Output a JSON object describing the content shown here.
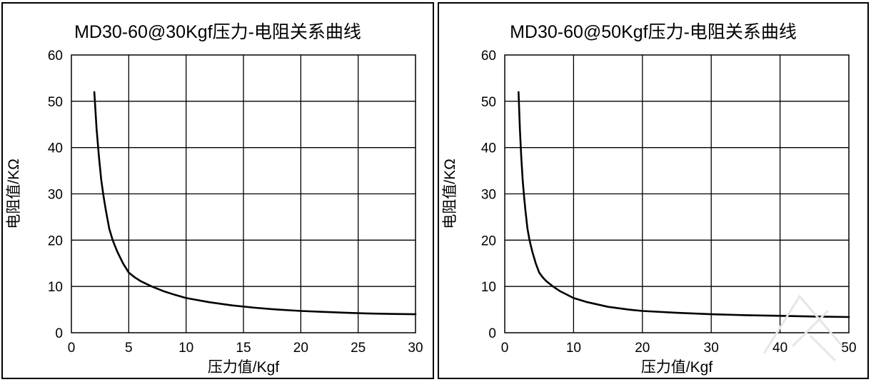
{
  "chart_data": [
    {
      "type": "line",
      "title": "MD30-60@30Kgf压力-电阻关系曲线",
      "xlabel": "压力值/Kgf",
      "ylabel": "电阻值/KΩ",
      "xlim": [
        0,
        30
      ],
      "ylim": [
        0,
        60
      ],
      "xticks": [
        0,
        5,
        10,
        15,
        20,
        25,
        30
      ],
      "yticks": [
        0,
        10,
        20,
        30,
        40,
        50,
        60
      ],
      "grid": true,
      "series": [
        {
          "x": [
            2,
            2.2,
            2.4,
            2.6,
            2.8,
            3.0,
            3.3,
            3.6,
            4.0,
            4.5,
            5.0,
            5.5,
            6,
            7,
            8,
            9,
            10,
            12,
            14,
            16,
            18,
            20,
            22,
            24,
            26,
            28,
            30
          ],
          "y": [
            52,
            44,
            38,
            33,
            29.5,
            26.5,
            22.5,
            20,
            17.5,
            15,
            13,
            12,
            11.2,
            10,
            9,
            8.2,
            7.5,
            6.6,
            5.9,
            5.4,
            5.0,
            4.7,
            4.5,
            4.3,
            4.15,
            4.05,
            4.0
          ],
          "color": "#000000"
        }
      ]
    },
    {
      "type": "line",
      "title": "MD30-60@50Kgf压力-电阻关系曲线",
      "xlabel": "压力值/Kgf",
      "ylabel": "电阻值/KΩ",
      "xlim": [
        0,
        50
      ],
      "ylim": [
        0,
        60
      ],
      "xticks": [
        0,
        10,
        20,
        30,
        40,
        50
      ],
      "yticks": [
        0,
        10,
        20,
        30,
        40,
        50,
        60
      ],
      "grid": true,
      "series": [
        {
          "x": [
            2,
            2.2,
            2.4,
            2.6,
            2.8,
            3.0,
            3.3,
            3.6,
            4.0,
            4.5,
            5.0,
            5.5,
            6,
            7,
            8,
            10,
            12,
            15,
            18,
            20,
            25,
            30,
            35,
            40,
            45,
            50
          ],
          "y": [
            52,
            44,
            38,
            33,
            29.5,
            26.5,
            22.5,
            20,
            17.5,
            15,
            13,
            12,
            11.2,
            10,
            9,
            7.5,
            6.6,
            5.6,
            5.0,
            4.7,
            4.3,
            4.0,
            3.8,
            3.65,
            3.5,
            3.4
          ],
          "color": "#000000"
        }
      ]
    }
  ]
}
